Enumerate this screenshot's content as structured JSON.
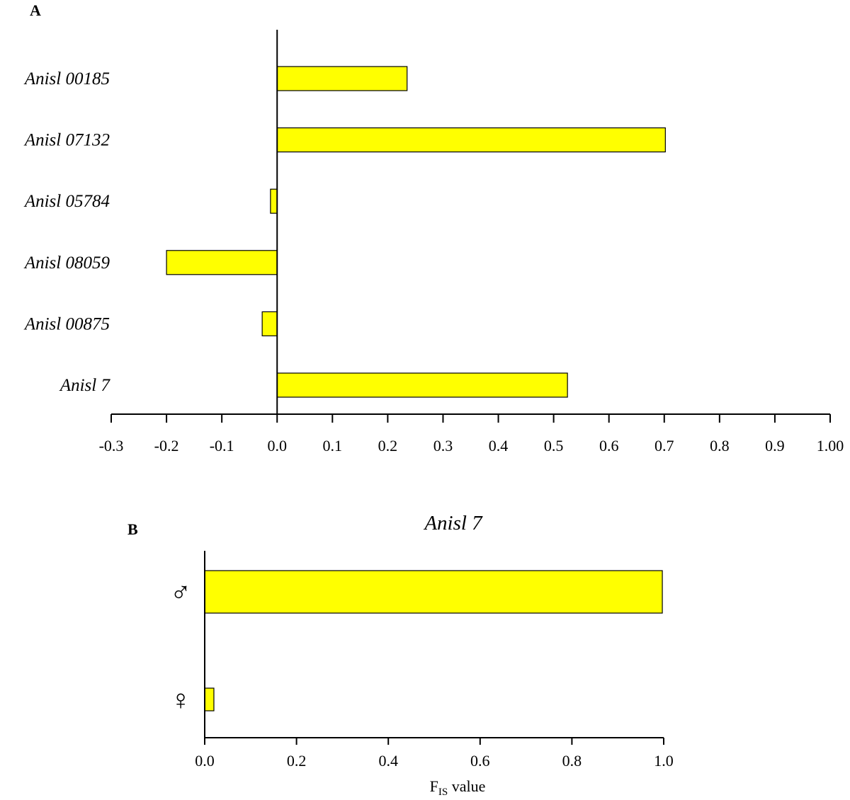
{
  "colors": {
    "bar": "#ffff00",
    "axis": "#000000"
  },
  "chart_data": [
    {
      "type": "bar",
      "orientation": "horizontal",
      "panel_label": "A",
      "title": "",
      "xlabel": "",
      "ylabel": "",
      "categories": [
        "Anisl 00185",
        "Anisl 07132",
        "Anisl 05784",
        "Anisl 08059",
        "Anisl 00875",
        "Anisl 7"
      ],
      "values": [
        0.235,
        0.702,
        -0.012,
        -0.2,
        -0.027,
        0.525
      ],
      "xlim": [
        -0.3,
        1.0
      ],
      "xticks": [
        "-0.3",
        "-0.2",
        "-0.1",
        "0.0",
        "0.1",
        "0.2",
        "0.3",
        "0.4",
        "0.5",
        "0.6",
        "0.7",
        "0.8",
        "0.9",
        "1.00"
      ],
      "grid": false,
      "legend": "none"
    },
    {
      "type": "bar",
      "orientation": "horizontal",
      "panel_label": "B",
      "title": "Anisl 7",
      "xlabel": "F",
      "xlabel_sub": "IS",
      "xlabel_suffix": " value",
      "ylabel": "",
      "categories": [
        "♂",
        "♀"
      ],
      "values": [
        0.997,
        0.02
      ],
      "xlim": [
        0.0,
        1.0
      ],
      "xticks": [
        "0.0",
        "0.2",
        "0.4",
        "0.6",
        "0.8",
        "1.0"
      ],
      "grid": false,
      "legend": "none"
    }
  ]
}
